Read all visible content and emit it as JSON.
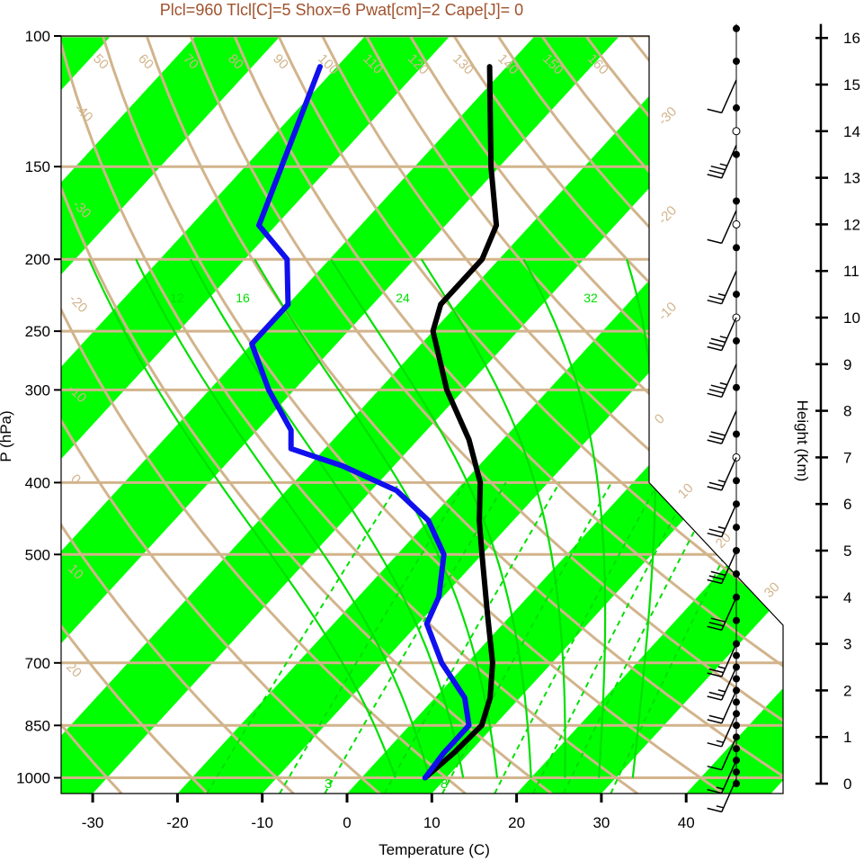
{
  "chart_data": {
    "type": "line",
    "title": "Plcl=960 Tlcl[C]=5 Shox=6 Pwat[cm]=2 Cape[J]= 0",
    "xlabel": "Temperature (C)",
    "ylabel": "P (hPa)",
    "y2label": "Height (Km)",
    "xlim": [
      -34,
      52
    ],
    "ylim": [
      1050,
      100
    ],
    "x_ticks": [
      -30,
      -20,
      -10,
      0,
      10,
      20,
      30,
      40
    ],
    "pressure_ticks": [
      100,
      150,
      200,
      250,
      300,
      400,
      500,
      700,
      850,
      1000
    ],
    "height_ticks": [
      0,
      1,
      2,
      3,
      4,
      5,
      6,
      7,
      8,
      9,
      10,
      11,
      12,
      13,
      14,
      15,
      16
    ],
    "isotherm_labels": [
      "-40",
      "-30",
      "-20",
      "-10",
      "0",
      "10",
      "20",
      "30",
      "40",
      "50",
      "60",
      "70",
      "80",
      "90",
      "100",
      "110",
      "120",
      "130",
      "140",
      "150",
      "160"
    ],
    "dry_adiabat_labels": [
      "-30",
      "-20",
      "-10",
      "0",
      "10",
      "20",
      "30"
    ],
    "moist_adiabat_labels": [
      "12",
      "16",
      "24",
      "32"
    ],
    "mixing_ratio_labels": [
      "3",
      "8"
    ],
    "colors": {
      "temperature": "#000000",
      "dewpoint": "#1010ee",
      "band": "#00ff00",
      "isopleth": "#d2b48c",
      "moist": "#00e000",
      "title": "#a0522d"
    },
    "series": [
      {
        "name": "Temperature",
        "points": [
          {
            "p": 1000,
            "t": 7.5
          },
          {
            "p": 925,
            "t": 8.2
          },
          {
            "p": 850,
            "t": 8.5
          },
          {
            "p": 780,
            "t": 6.5
          },
          {
            "p": 700,
            "t": 3.0
          },
          {
            "p": 600,
            "t": -3.0
          },
          {
            "p": 500,
            "t": -10.0
          },
          {
            "p": 450,
            "t": -14.0
          },
          {
            "p": 400,
            "t": -18.0
          },
          {
            "p": 350,
            "t": -24.0
          },
          {
            "p": 300,
            "t": -32.0
          },
          {
            "p": 250,
            "t": -40.0
          },
          {
            "p": 230,
            "t": -42.0
          },
          {
            "p": 200,
            "t": -42.0
          },
          {
            "p": 180,
            "t": -44.0
          },
          {
            "p": 150,
            "t": -51.0
          },
          {
            "p": 110,
            "t": -62.0
          }
        ]
      },
      {
        "name": "Dewpoint",
        "points": [
          {
            "p": 1000,
            "t": 7.5
          },
          {
            "p": 925,
            "t": 7.0
          },
          {
            "p": 850,
            "t": 7.0
          },
          {
            "p": 780,
            "t": 3.5
          },
          {
            "p": 700,
            "t": -3.0
          },
          {
            "p": 620,
            "t": -9.0
          },
          {
            "p": 570,
            "t": -10.5
          },
          {
            "p": 500,
            "t": -14.5
          },
          {
            "p": 450,
            "t": -20.0
          },
          {
            "p": 410,
            "t": -27.0
          },
          {
            "p": 380,
            "t": -36.0
          },
          {
            "p": 360,
            "t": -44.0
          },
          {
            "p": 340,
            "t": -46.0
          },
          {
            "p": 300,
            "t": -53.0
          },
          {
            "p": 260,
            "t": -60.0
          },
          {
            "p": 230,
            "t": -60.0
          },
          {
            "p": 200,
            "t": -65.0
          },
          {
            "p": 180,
            "t": -72.0
          },
          {
            "p": 110,
            "t": -82.0
          }
        ]
      }
    ],
    "height_km_points": [
      {
        "km": 0,
        "p": 1000
      },
      {
        "km": 1,
        "p": 900
      },
      {
        "km": 2,
        "p": 795
      },
      {
        "km": 3,
        "p": 700
      },
      {
        "km": 4,
        "p": 620
      },
      {
        "km": 5,
        "p": 545
      },
      {
        "km": 6,
        "p": 480
      },
      {
        "km": 7,
        "p": 410
      },
      {
        "km": 8,
        "p": 355
      },
      {
        "km": 9,
        "p": 308
      },
      {
        "km": 10,
        "p": 265
      },
      {
        "km": 11,
        "p": 228
      },
      {
        "km": 12,
        "p": 193
      },
      {
        "km": 13,
        "p": 166
      },
      {
        "km": 14,
        "p": 140
      },
      {
        "km": 15,
        "p": 120
      },
      {
        "km": 16,
        "p": 103
      }
    ],
    "wind_barbs": [
      {
        "km": 0.1,
        "knots": 15
      },
      {
        "km": 0.5,
        "knots": 15
      },
      {
        "km": 1.0,
        "knots": 10
      },
      {
        "km": 1.5,
        "knots": 15
      },
      {
        "km": 2.0,
        "knots": 20
      },
      {
        "km": 2.5,
        "knots": 25
      },
      {
        "km": 3.0,
        "knots": 25
      },
      {
        "km": 4.0,
        "knots": 30
      },
      {
        "km": 5.0,
        "knots": 30
      },
      {
        "km": 6.0,
        "knots": 25
      },
      {
        "km": 7.0,
        "knots": 25
      },
      {
        "km": 8.0,
        "knots": 30
      },
      {
        "km": 9.0,
        "knots": 35
      },
      {
        "km": 10.0,
        "knots": 35
      },
      {
        "km": 11.0,
        "knots": 25
      },
      {
        "km": 12.3,
        "knots": 10
      },
      {
        "km": 13.7,
        "knots": 35
      },
      {
        "km": 15.1,
        "knots": 10
      }
    ],
    "dot_heights_km": [
      0,
      0.25,
      0.5,
      0.75,
      1,
      1.25,
      1.5,
      1.75,
      2,
      2.25,
      2.5,
      2.75,
      3,
      3.5,
      4,
      4.5,
      5,
      5.5,
      6,
      6.5,
      7.5,
      8.5,
      9.5,
      10.5,
      11.5,
      12.5,
      13.5,
      14.5,
      15.5,
      16.2
    ],
    "open_dot_heights_km": [
      7,
      10,
      12,
      14
    ]
  }
}
